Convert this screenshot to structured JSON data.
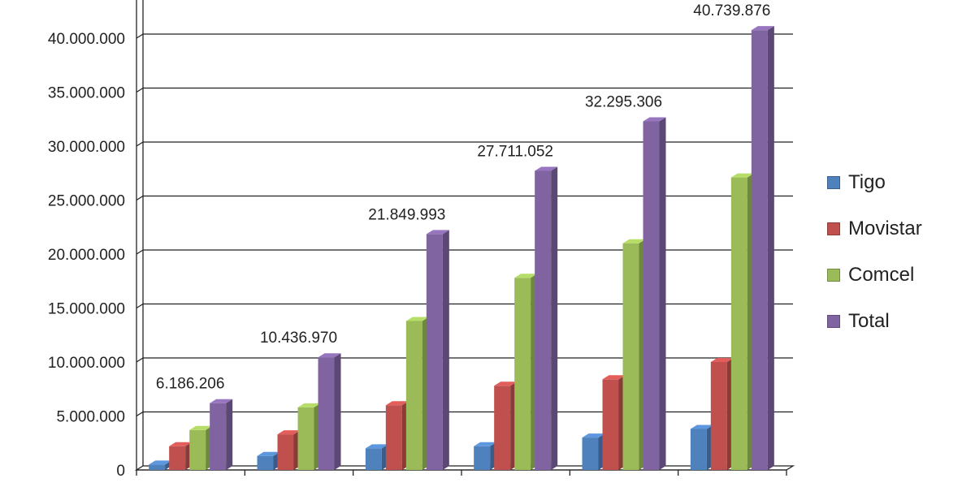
{
  "chart_data": {
    "type": "bar",
    "title": "",
    "xlabel": "",
    "ylabel": "",
    "ylim": [
      0,
      40000000
    ],
    "yticks": [
      "0",
      "5.000.000",
      "10.000.000",
      "15.000.000",
      "20.000.000",
      "25.000.000",
      "30.000.000",
      "35.000.000",
      "40.000.000"
    ],
    "grid": true,
    "legend_position": "right",
    "categories": [
      "",
      "",
      "",
      "",
      "",
      ""
    ],
    "series": [
      {
        "name": "Tigo",
        "color": "#4f81bd",
        "values": [
          500000,
          1300000,
          2000000,
          2200000,
          3000000,
          3800000
        ]
      },
      {
        "name": "Movistar",
        "color": "#c0504d",
        "values": [
          2200000,
          3300000,
          6000000,
          7800000,
          8400000,
          10000000
        ]
      },
      {
        "name": "Comcel",
        "color": "#9bbb59",
        "values": [
          3700000,
          5800000,
          13800000,
          17800000,
          21000000,
          27100000
        ]
      },
      {
        "name": "Total",
        "color": "#8064a2",
        "values": [
          6186206,
          10436970,
          21849993,
          27711052,
          32295306,
          40739876
        ]
      }
    ],
    "data_labels": [
      "6.186.206",
      "10.436.970",
      "21.849.993",
      "27.711.052",
      "32.295.306",
      "40.739.876"
    ]
  }
}
